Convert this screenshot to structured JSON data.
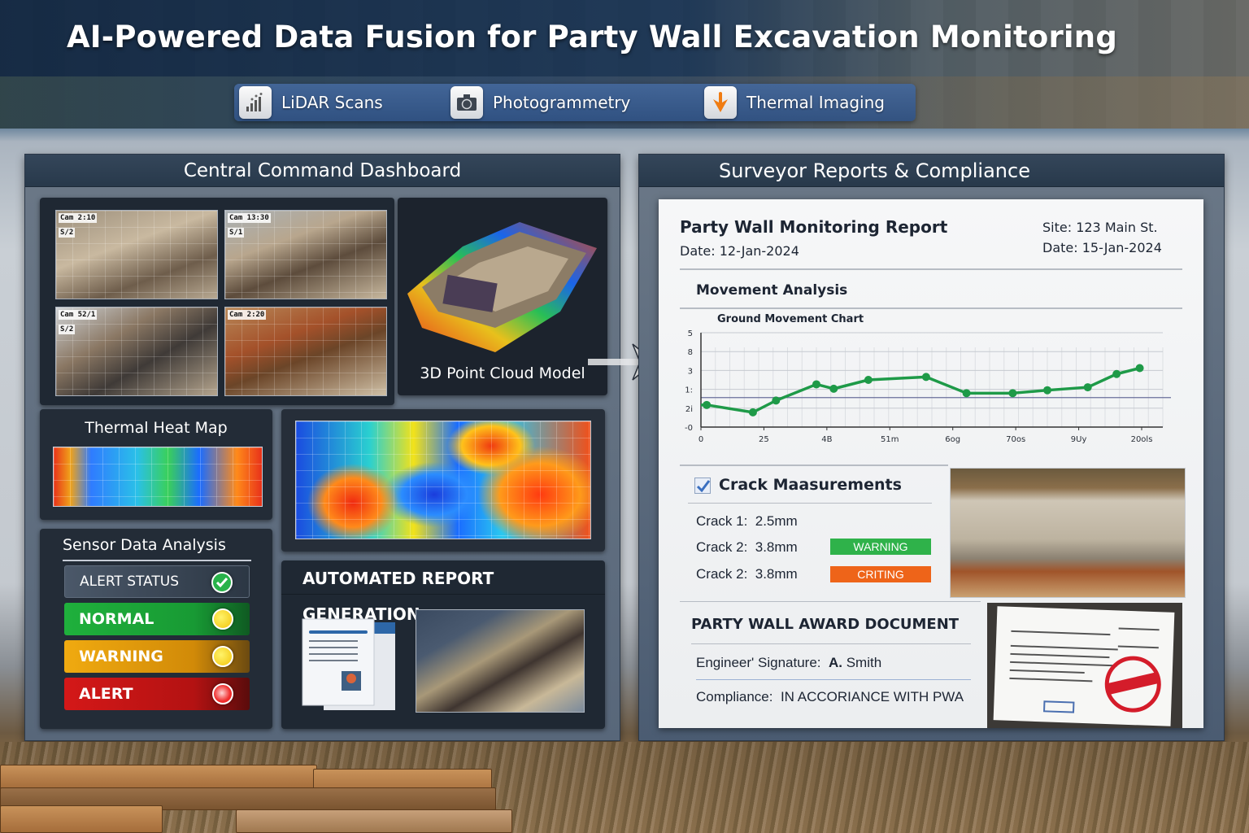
{
  "header": {
    "title": "AI-Powered Data Fusion for Party Wall Excavation Monitoring",
    "sources": [
      {
        "label": "LiDAR Scans",
        "icon": "lidar-signal-icon"
      },
      {
        "label": "Photogrammetry",
        "icon": "camera-icon"
      },
      {
        "label": "Thermal Imaging",
        "icon": "thermal-arrow-icon"
      }
    ]
  },
  "dashboard": {
    "title": "Central Command Dashboard",
    "camera_feeds": [
      {
        "tag": "Cam 2:10",
        "sub": "S/2"
      },
      {
        "tag": "Cam 13:30",
        "sub": "S/1"
      },
      {
        "tag": "Cam 52/1",
        "sub": "S/2"
      },
      {
        "tag": "Cam 2:20",
        "sub": ""
      }
    ],
    "point_cloud_label": "3D Point Cloud Model",
    "thermal_title": "Thermal Heat Map",
    "sensor": {
      "title": "Sensor Data Analysis",
      "rows": [
        {
          "label": "ALERT STATUS",
          "indicator": "check",
          "color": "#3a4656"
        },
        {
          "label": "NORMAL",
          "indicator": "yellow",
          "color": "#1fa83a"
        },
        {
          "label": "WARNING",
          "indicator": "yellow",
          "color": "#e8a20c"
        },
        {
          "label": "ALERT",
          "indicator": "red",
          "color": "#c81818"
        }
      ]
    },
    "report_gen_title": "AUTOMATED REPORT GENERATION"
  },
  "reports": {
    "title": "Surveyor Reports & Compliance",
    "report_title": "Party Wall Monitoring Report",
    "report_date": "Date: 12-Jan-2024",
    "site": "Site: 123 Main St.",
    "site_date": "Date: 15-Jan-2024",
    "movement_heading": "Movement Analysis",
    "crack_heading": "Crack Maasurements",
    "cracks": [
      {
        "label": "Crack 1:",
        "value": "2.5mm",
        "badge": null
      },
      {
        "label": "Crack 2:",
        "value": "3.8mm",
        "badge": {
          "text": "WARNING",
          "color": "#2fb24a"
        }
      },
      {
        "label": "Crack 2:",
        "value": "3.8mm",
        "badge": {
          "text": "CRITING",
          "color": "#ee6419"
        }
      }
    ],
    "award_heading": "PARTY WALL AWARD DOCUMENT",
    "signature_label": "Engineer' Signature:",
    "signature_initial": "A.",
    "signature_name": "Smith",
    "compliance_label": "Compliance:",
    "compliance_value": "IN ACCORIANCE WITH PWA"
  },
  "chart_data": {
    "type": "line",
    "title": "Ground Movement Chart",
    "xlabel": "",
    "ylabel": "",
    "x_tick_labels": [
      "0",
      "25",
      "4B",
      "51m",
      "6og",
      "70os",
      "9Uy",
      "20ols"
    ],
    "y_tick_labels": [
      "-0",
      "2i",
      "1:",
      "3",
      "8",
      "5"
    ],
    "grid": true,
    "reference_line": 1.0,
    "series": [
      {
        "name": "Ground movement",
        "color": "#1e9a48",
        "x": [
          0.1,
          0.9,
          1.3,
          2.0,
          2.3,
          2.9,
          3.9,
          4.6,
          5.4,
          6.0,
          6.7,
          7.2,
          7.6
        ],
        "values": [
          0.75,
          0.5,
          0.9,
          1.45,
          1.3,
          1.6,
          1.7,
          1.15,
          1.15,
          1.25,
          1.35,
          1.8,
          2.0
        ]
      }
    ],
    "ylim": [
      0,
      3.2
    ],
    "xlim": [
      0,
      8
    ],
    "legend": "none"
  }
}
